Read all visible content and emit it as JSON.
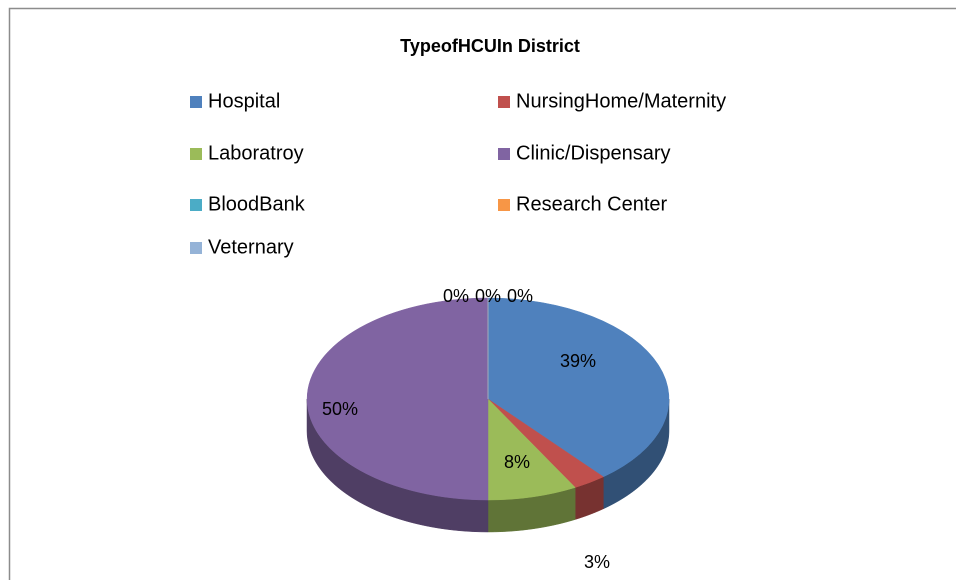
{
  "chart_data": {
    "type": "pie",
    "title": "TypeofHCUIn District",
    "categories": [
      "Hospital",
      "NursingHome/Maternity",
      "Laboratroy",
      "Clinic/Dispensary",
      "BloodBank",
      "Research Center",
      "Veternary"
    ],
    "values": [
      39,
      3,
      8,
      50,
      0,
      0,
      0
    ],
    "value_labels": [
      "39%",
      "3%",
      "8%",
      "50%",
      "0%",
      "0%",
      "0%"
    ],
    "colors": [
      "#4f81bd",
      "#c0504d",
      "#9bbb59",
      "#8064a2",
      "#4bacc6",
      "#f79646",
      "#95b3d7"
    ]
  }
}
